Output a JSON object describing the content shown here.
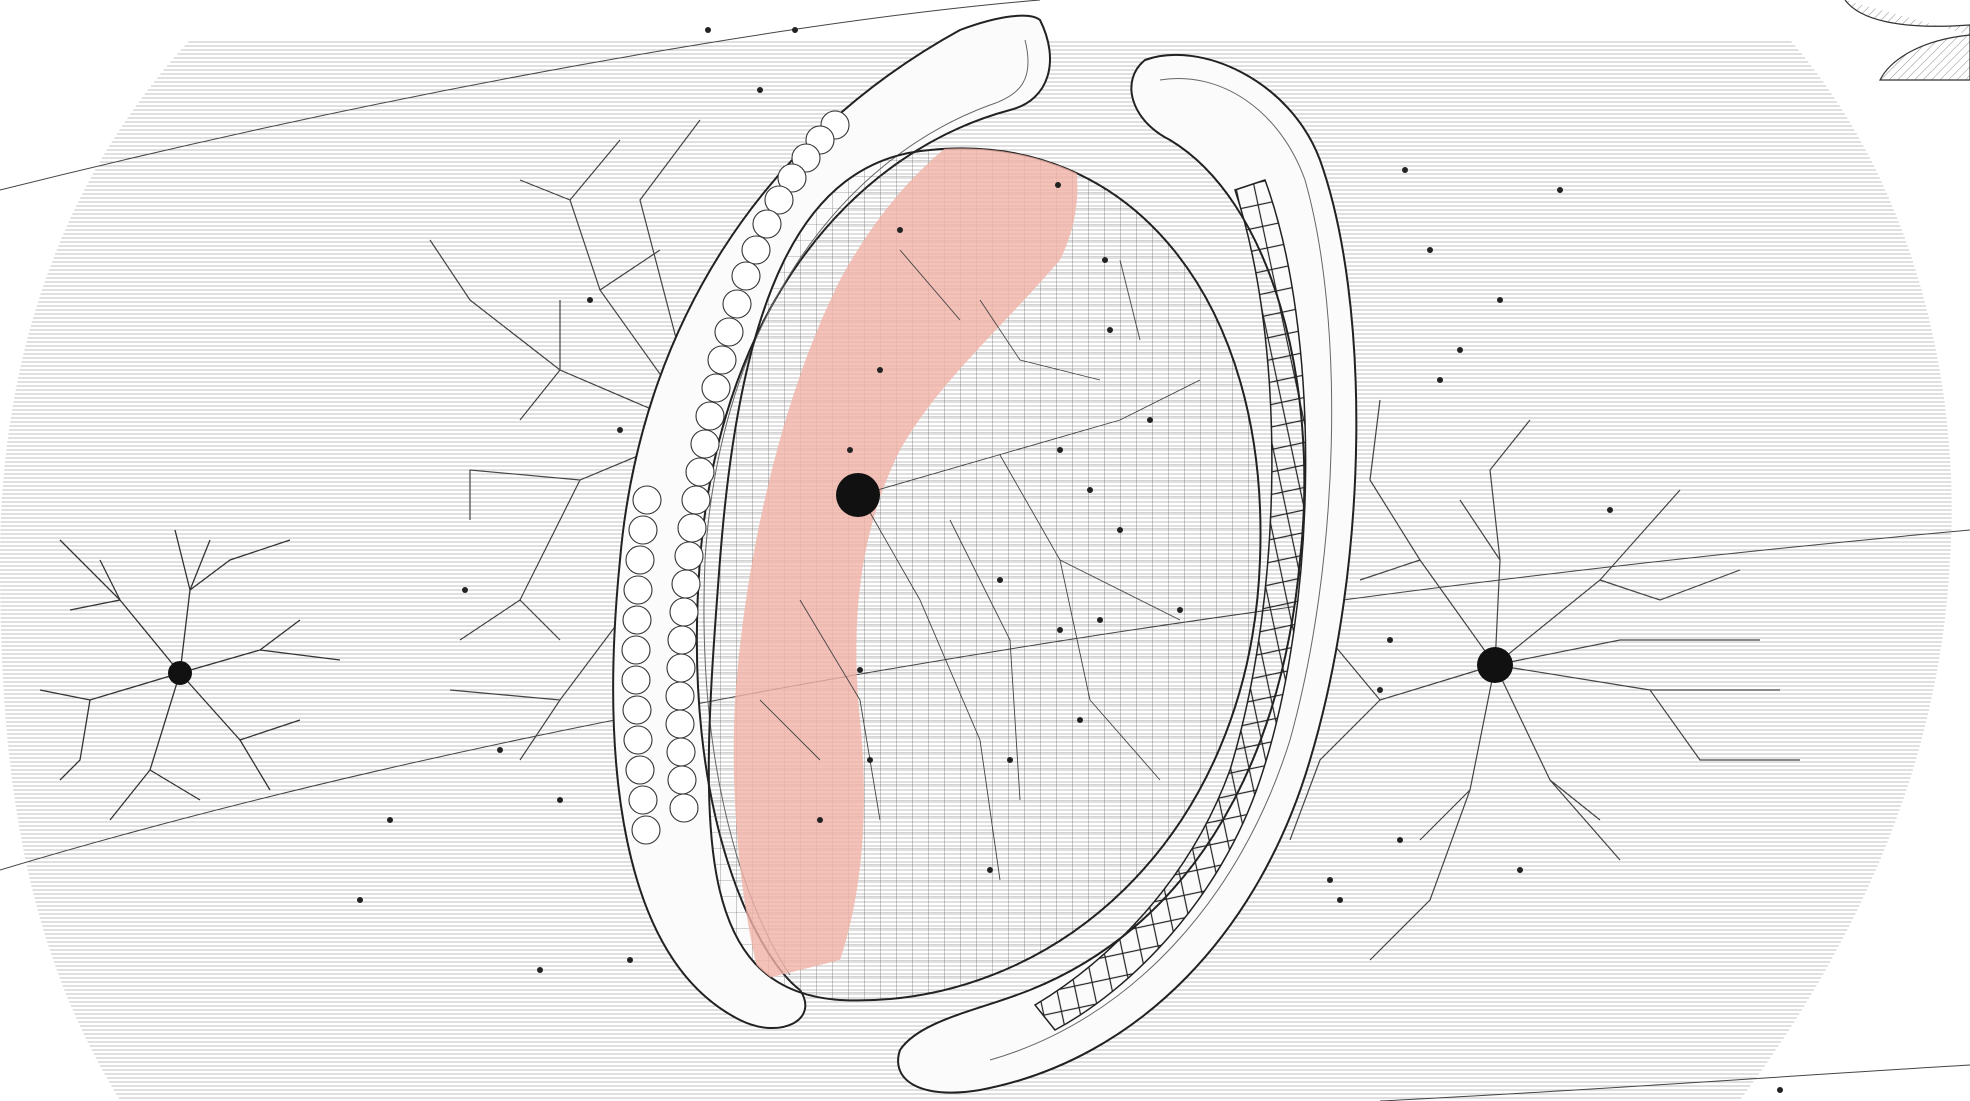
{
  "colors": {
    "background": "#ffffff",
    "ink": "#2b2b2b",
    "hatch": "#9a9a9a",
    "highlight": "#f1b3a6",
    "node": "#111111"
  }
}
